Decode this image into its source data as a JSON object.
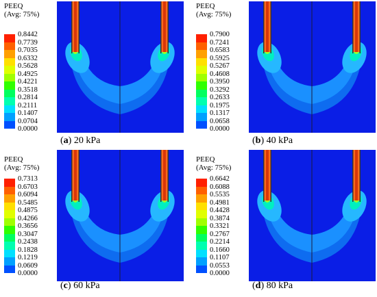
{
  "colors": [
    "#0000ff",
    "#0050ff",
    "#00a0ff",
    "#00e0ff",
    "#00ffb0",
    "#00ff60",
    "#30ff00",
    "#a0ff00",
    "#e0ff00",
    "#ffe000",
    "#ffa000",
    "#ff6000",
    "#ff2000"
  ],
  "panels": [
    {
      "id": "a",
      "legend_title": "PEEQ",
      "legend_subtitle": "(Avg: 75%)",
      "ticks": [
        "0.8442",
        "0.7739",
        "0.7035",
        "0.6332",
        "0.5628",
        "0.4925",
        "0.4221",
        "0.3518",
        "0.2814",
        "0.2111",
        "0.1407",
        "0.0704",
        "0.0000"
      ],
      "caption_letter": "a",
      "caption_text": "20 kPa",
      "caption_open": "(",
      "caption_close": ")"
    },
    {
      "id": "b",
      "legend_title": "PEEQ",
      "legend_subtitle": "(Avg: 75%)",
      "ticks": [
        "0.7900",
        "0.7241",
        "0.6583",
        "0.5925",
        "0.5267",
        "0.4608",
        "0.3950",
        "0.3292",
        "0.2633",
        "0.1975",
        "0.1317",
        "0.0658",
        "0.0000"
      ],
      "caption_letter": "b",
      "caption_text": "40 kPa",
      "caption_open": "(",
      "caption_close": ")"
    },
    {
      "id": "c",
      "legend_title": "PEEQ",
      "legend_subtitle": "(Avg: 75%)",
      "ticks": [
        "0.7313",
        "0.6703",
        "0.6094",
        "0.5485",
        "0.4875",
        "0.4266",
        "0.3656",
        "0.3047",
        "0.2438",
        "0.1828",
        "0.1219",
        "0.0609",
        "0.0000"
      ],
      "caption_letter": "c",
      "caption_text": "60 kPa",
      "caption_open": "(",
      "caption_close": ")"
    },
    {
      "id": "d",
      "legend_title": "PEEQ",
      "legend_subtitle": "(Avg: 75%)",
      "ticks": [
        "0.6642",
        "0.6088",
        "0.5535",
        "0.4981",
        "0.4428",
        "0.3874",
        "0.3321",
        "0.2767",
        "0.2214",
        "0.1660",
        "0.1107",
        "0.0553",
        "0.0000"
      ],
      "caption_letter": "d",
      "caption_text": "80 kPa",
      "caption_open": "(",
      "caption_close": ")"
    }
  ]
}
